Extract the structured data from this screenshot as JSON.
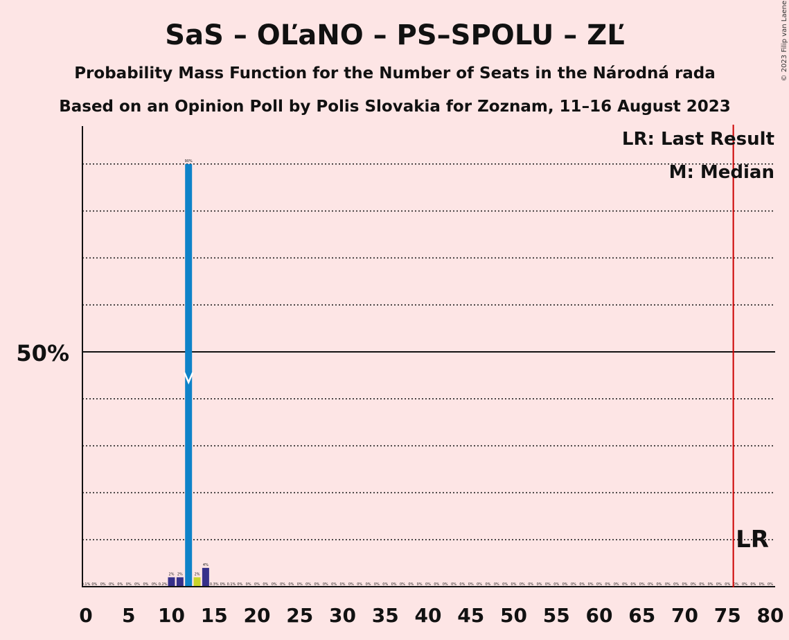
{
  "chart_data": {
    "type": "bar",
    "title": "SaS – OĽaNO – PS–SPOLU – ZĽ",
    "subtitle": "Probability Mass Function for the Number of Seats in the Národná rada",
    "subtitle2": "Based on an Opinion Poll by Polis Slovakia for Zoznam, 11–16 August 2023",
    "copyright": "© 2023 Filip van Laenen",
    "ylabel_50": "50%",
    "xlim": [
      0,
      80
    ],
    "ylim": [
      0,
      100
    ],
    "x_ticks": [
      0,
      5,
      10,
      15,
      20,
      25,
      30,
      35,
      40,
      45,
      50,
      55,
      60,
      65,
      70,
      75,
      80
    ],
    "legend": {
      "last_result": "LR: Last Result",
      "median": "M: Median"
    },
    "last_result": 76,
    "last_result_label": "LR",
    "median": 12,
    "colors": {
      "blue": "#0e82c8",
      "dark": "#36308a",
      "yellow": "#c8d42a",
      "lr_line": "#cc0000"
    },
    "bars": [
      {
        "x": 10,
        "value": 2,
        "label": "2%",
        "color": "dark"
      },
      {
        "x": 11,
        "value": 2,
        "label": "2%",
        "color": "dark"
      },
      {
        "x": 12,
        "value": 90,
        "label": "90%",
        "color": "blue"
      },
      {
        "x": 13,
        "value": 2,
        "label": "2%",
        "color": "yellow"
      },
      {
        "x": 14,
        "value": 4,
        "label": "4%",
        "color": "dark"
      }
    ],
    "small_labels": [
      {
        "x": 0,
        "label": "0.1%"
      },
      {
        "x": 1,
        "label": "0%"
      },
      {
        "x": 2,
        "label": "0%"
      },
      {
        "x": 3,
        "label": "0%"
      },
      {
        "x": 4,
        "label": "0%"
      },
      {
        "x": 5,
        "label": "0%"
      },
      {
        "x": 6,
        "label": "0%"
      },
      {
        "x": 7,
        "label": "0%"
      },
      {
        "x": 8,
        "label": "0%"
      },
      {
        "x": 9,
        "label": "0.2%"
      },
      {
        "x": 15,
        "label": "0.3%"
      },
      {
        "x": 16,
        "label": "0%"
      },
      {
        "x": 17,
        "label": "0.1%"
      },
      {
        "x": 18,
        "label": "0%"
      },
      {
        "x": 19,
        "label": "0%"
      },
      {
        "x": 20,
        "label": "0%"
      },
      {
        "x": 21,
        "label": "0%"
      },
      {
        "x": 22,
        "label": "0%"
      },
      {
        "x": 23,
        "label": "0%"
      },
      {
        "x": 24,
        "label": "0%"
      },
      {
        "x": 25,
        "label": "0%"
      },
      {
        "x": 26,
        "label": "0%"
      },
      {
        "x": 27,
        "label": "0%"
      },
      {
        "x": 28,
        "label": "0%"
      },
      {
        "x": 29,
        "label": "0%"
      },
      {
        "x": 30,
        "label": "0%"
      },
      {
        "x": 31,
        "label": "0%"
      },
      {
        "x": 32,
        "label": "0%"
      },
      {
        "x": 33,
        "label": "0%"
      },
      {
        "x": 34,
        "label": "0%"
      },
      {
        "x": 35,
        "label": "0%"
      },
      {
        "x": 36,
        "label": "0%"
      },
      {
        "x": 37,
        "label": "0%"
      },
      {
        "x": 38,
        "label": "0%"
      },
      {
        "x": 39,
        "label": "0%"
      },
      {
        "x": 40,
        "label": "0%"
      },
      {
        "x": 41,
        "label": "0%"
      },
      {
        "x": 42,
        "label": "0%"
      },
      {
        "x": 43,
        "label": "0%"
      },
      {
        "x": 44,
        "label": "0%"
      },
      {
        "x": 45,
        "label": "0%"
      },
      {
        "x": 46,
        "label": "0%"
      },
      {
        "x": 47,
        "label": "0%"
      },
      {
        "x": 48,
        "label": "0%"
      },
      {
        "x": 49,
        "label": "0%"
      },
      {
        "x": 50,
        "label": "0%"
      },
      {
        "x": 51,
        "label": "0%"
      },
      {
        "x": 52,
        "label": "0%"
      },
      {
        "x": 53,
        "label": "0%"
      },
      {
        "x": 54,
        "label": "0%"
      },
      {
        "x": 55,
        "label": "0%"
      },
      {
        "x": 56,
        "label": "0%"
      },
      {
        "x": 57,
        "label": "0%"
      },
      {
        "x": 58,
        "label": "0%"
      },
      {
        "x": 59,
        "label": "0%"
      },
      {
        "x": 60,
        "label": "0%"
      },
      {
        "x": 61,
        "label": "0%"
      },
      {
        "x": 62,
        "label": "0%"
      },
      {
        "x": 63,
        "label": "0%"
      },
      {
        "x": 64,
        "label": "0%"
      },
      {
        "x": 65,
        "label": "0%"
      },
      {
        "x": 66,
        "label": "0%"
      },
      {
        "x": 67,
        "label": "0%"
      },
      {
        "x": 68,
        "label": "0%"
      },
      {
        "x": 69,
        "label": "0%"
      },
      {
        "x": 70,
        "label": "0%"
      },
      {
        "x": 71,
        "label": "0%"
      },
      {
        "x": 72,
        "label": "0%"
      },
      {
        "x": 73,
        "label": "0%"
      },
      {
        "x": 74,
        "label": "0%"
      },
      {
        "x": 75,
        "label": "0%"
      },
      {
        "x": 76,
        "label": "0%"
      },
      {
        "x": 77,
        "label": "0%"
      },
      {
        "x": 78,
        "label": "0%"
      },
      {
        "x": 79,
        "label": "0%"
      },
      {
        "x": 80,
        "label": "0%"
      }
    ]
  }
}
